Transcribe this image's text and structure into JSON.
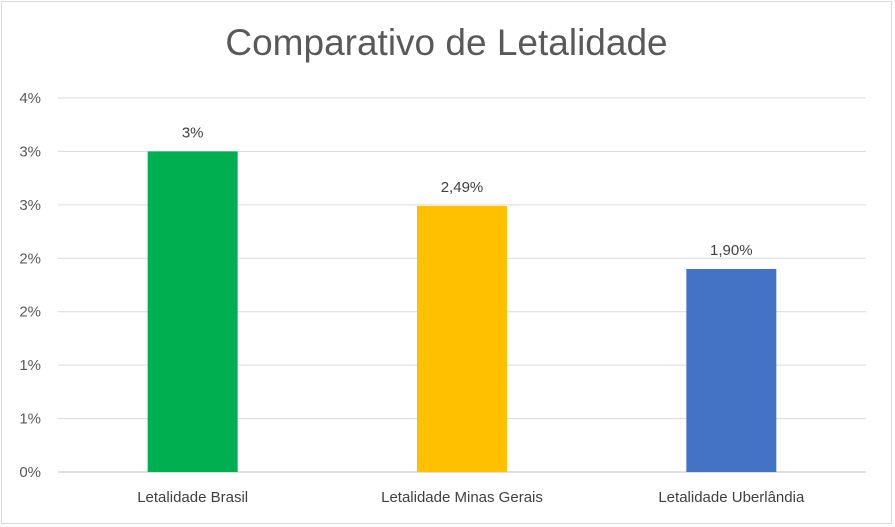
{
  "chart_data": {
    "type": "bar",
    "title": "Comparativo de Letalidade",
    "xlabel": "",
    "ylabel": "",
    "ylim": [
      0,
      0.035
    ],
    "y_ticks": [
      {
        "value": 0.0,
        "label": "0%"
      },
      {
        "value": 0.005,
        "label": "1%"
      },
      {
        "value": 0.01,
        "label": "1%"
      },
      {
        "value": 0.015,
        "label": "2%"
      },
      {
        "value": 0.02,
        "label": "2%"
      },
      {
        "value": 0.025,
        "label": "3%"
      },
      {
        "value": 0.03,
        "label": "3%"
      },
      {
        "value": 0.035,
        "label": "4%"
      }
    ],
    "categories": [
      "Letalidade Brasil",
      "Letalidade Minas Gerais",
      "Letalidade Uberlândia"
    ],
    "values": [
      0.03,
      0.0249,
      0.019
    ],
    "data_labels": [
      "3%",
      "2,49%",
      "1,90%"
    ],
    "colors": [
      "#00b050",
      "#ffc000",
      "#4472c4"
    ],
    "grid": true,
    "legend": "none"
  }
}
